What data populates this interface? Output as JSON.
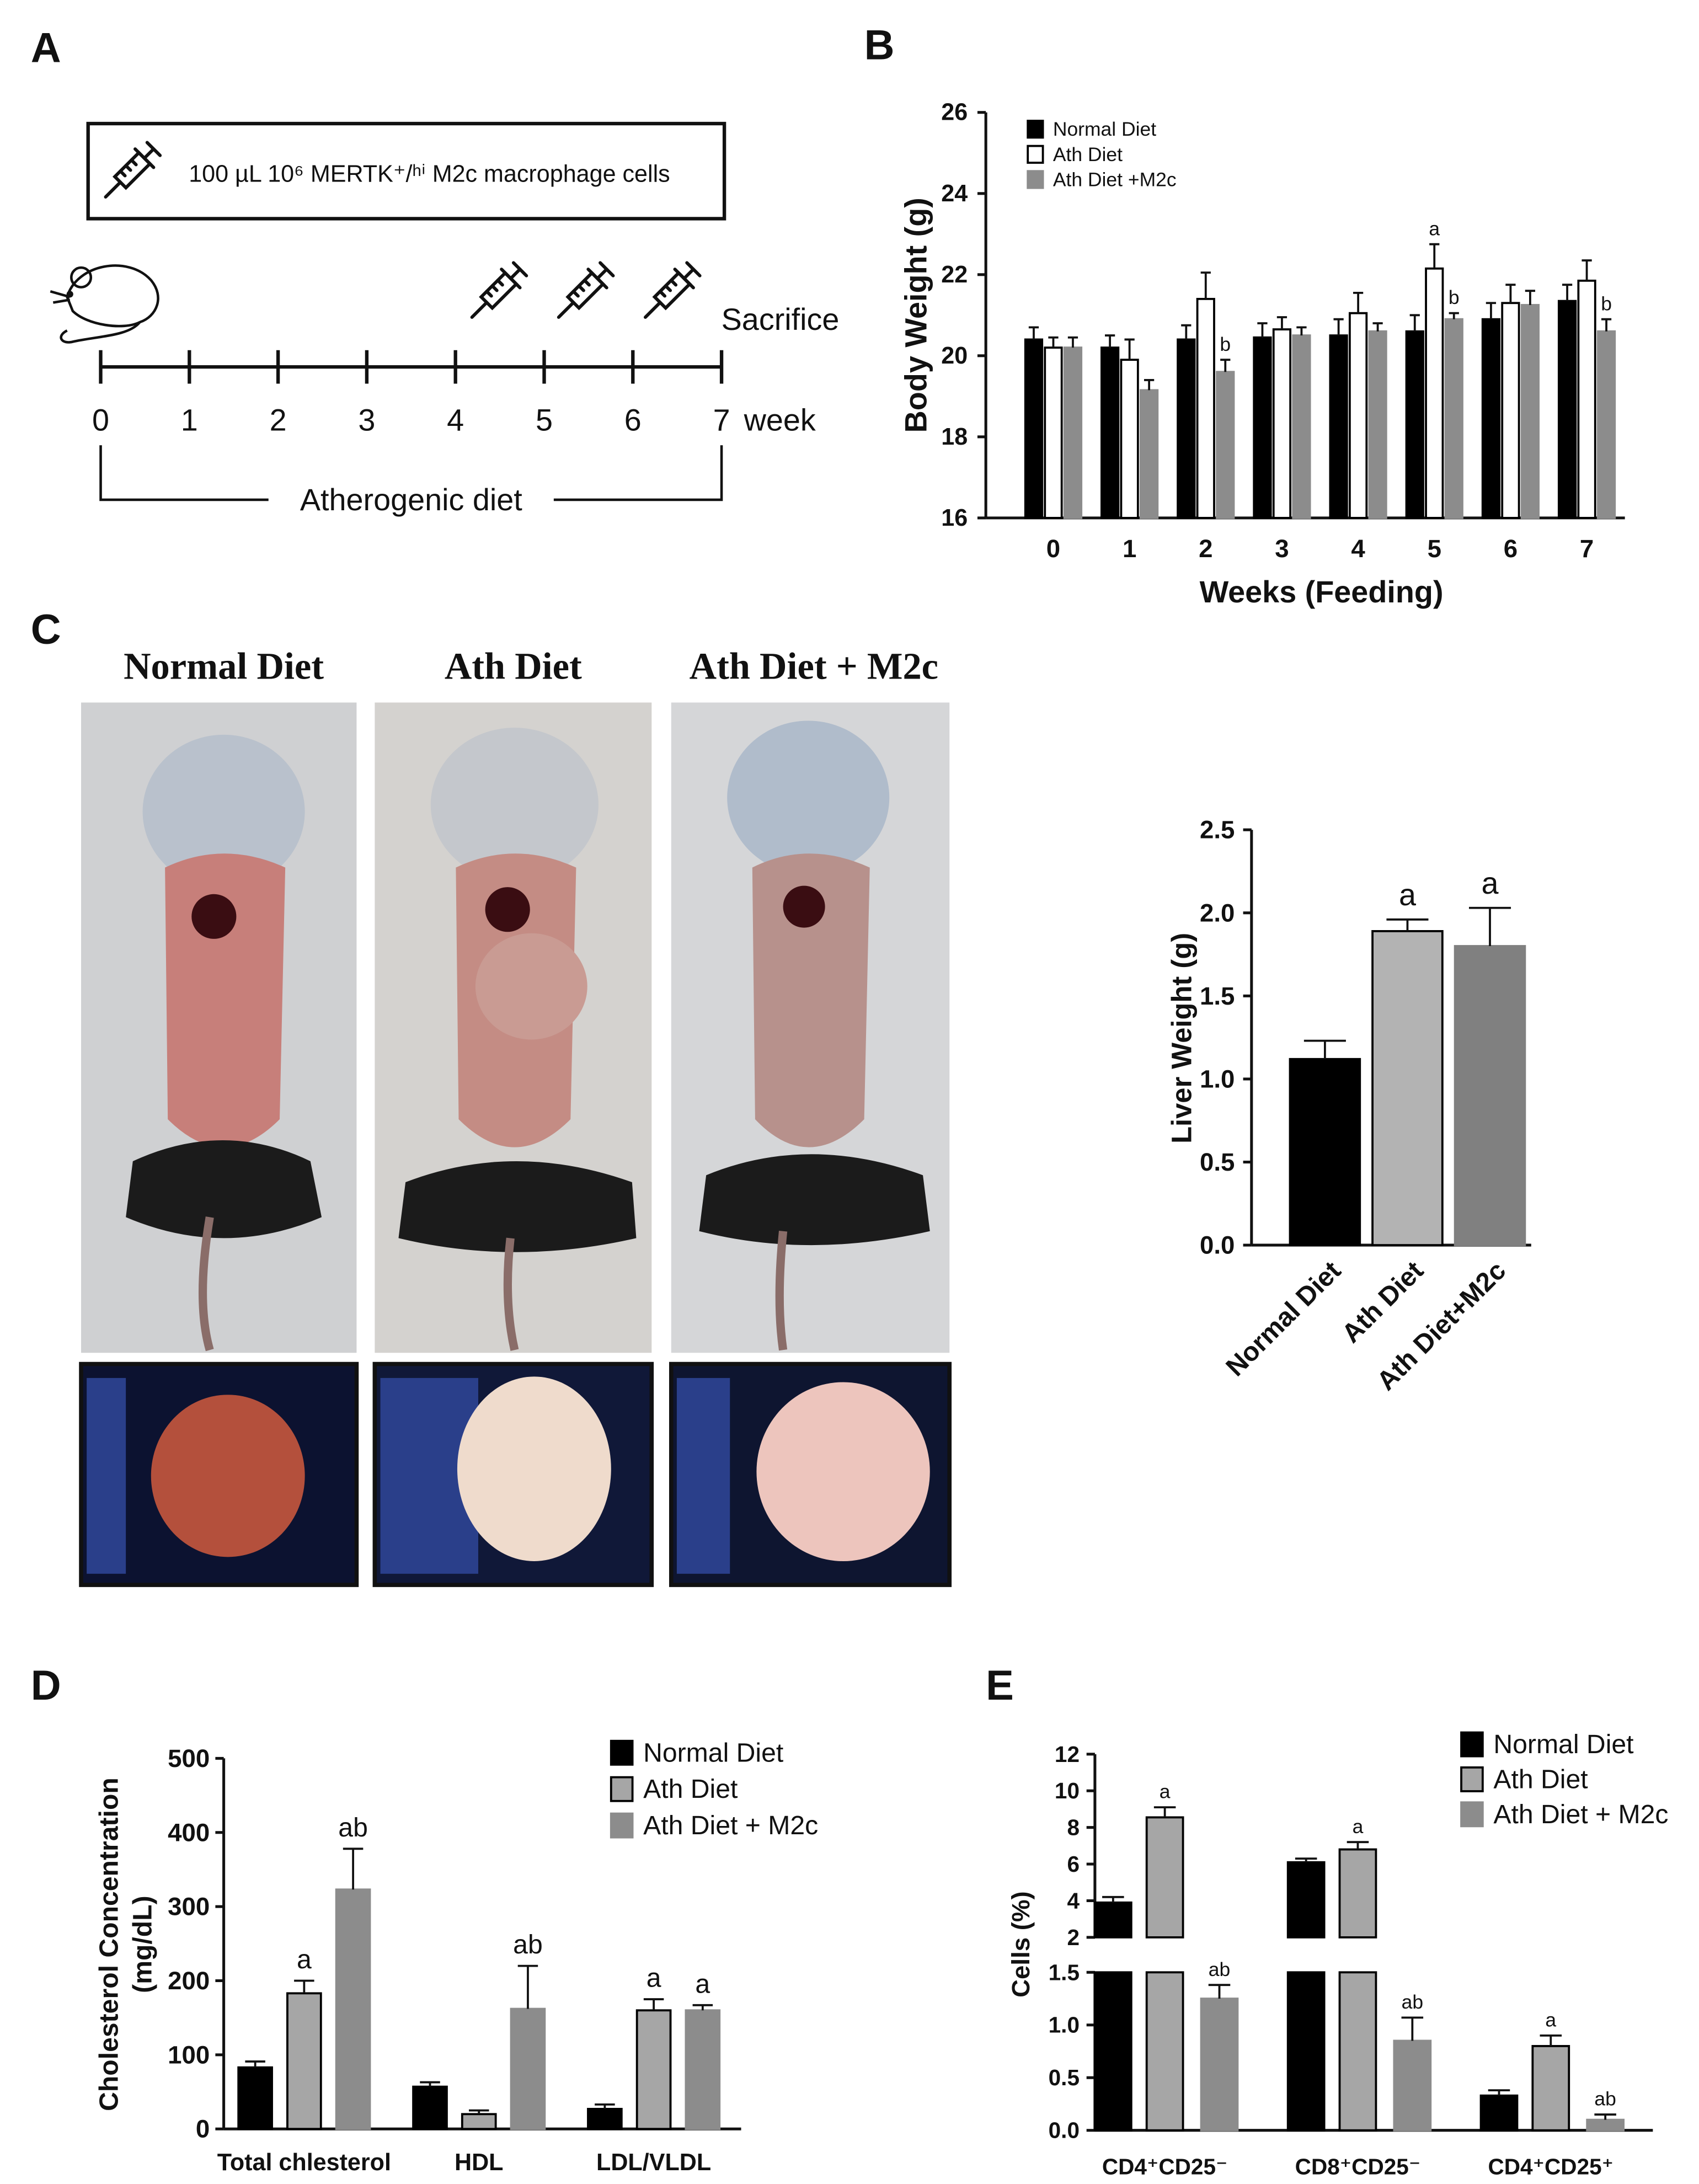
{
  "panels": {
    "labels": [
      "A",
      "B",
      "C",
      "D",
      "E"
    ]
  },
  "timeline": {
    "injection": "100 µL 10⁶ MERTK⁺/ʰⁱ M2c macrophage cells",
    "weeks": [
      0,
      1,
      2,
      3,
      4,
      5,
      6,
      7
    ],
    "unit": "week",
    "end_label": "Sacrifice",
    "diet_label": "Atherogenic diet"
  },
  "photos": {
    "titles": [
      "Normal Diet",
      "Ath Diet",
      "Ath Diet + M2c"
    ]
  },
  "chart_data": [
    {
      "type": "bar",
      "y_label": "Body Weight (g)",
      "x_label": "Weeks (Feeding)",
      "categories": [
        "0",
        "1",
        "2",
        "3",
        "4",
        "5",
        "6",
        "7"
      ],
      "ylim": [
        16,
        26
      ],
      "yticks": [
        16,
        18,
        20,
        22,
        24,
        26
      ],
      "series": [
        {
          "name": "Normal Diet",
          "color": "#000000",
          "values": [
            20.4,
            20.2,
            20.4,
            20.45,
            20.5,
            20.6,
            20.9,
            21.35
          ],
          "errors": [
            0.3,
            0.3,
            0.35,
            0.35,
            0.4,
            0.4,
            0.4,
            0.4
          ]
        },
        {
          "name": "Ath Diet",
          "color": "#ffffff",
          "edgecolor": "#000000",
          "values": [
            20.2,
            19.9,
            21.4,
            20.65,
            21.05,
            22.15,
            21.3,
            21.85
          ],
          "errors": [
            0.25,
            0.5,
            0.65,
            0.3,
            0.5,
            0.6,
            0.45,
            0.5
          ],
          "annotations": [
            null,
            null,
            null,
            null,
            null,
            "a",
            null,
            null
          ]
        },
        {
          "name": "Ath Diet +M2c",
          "color": "#8c8c8c",
          "values": [
            20.2,
            19.15,
            19.6,
            20.5,
            20.6,
            20.9,
            21.25,
            20.6
          ],
          "errors": [
            0.25,
            0.25,
            0.3,
            0.2,
            0.2,
            0.15,
            0.35,
            0.3
          ],
          "annotations": [
            null,
            null,
            "b",
            null,
            null,
            "b",
            null,
            "b"
          ]
        }
      ]
    },
    {
      "type": "bar",
      "y_label": "Liver Weight (g)",
      "categories": [
        "Normal Diet",
        "Ath Diet",
        "Ath Diet+M2c"
      ],
      "values": [
        1.12,
        1.89,
        1.8
      ],
      "errors": [
        0.11,
        0.07,
        0.23
      ],
      "annotations": [
        null,
        "a",
        "a"
      ],
      "colors": [
        "#000000",
        "#b3b3b3",
        "#808080"
      ],
      "edgecolors": [
        "#000000",
        "#000000",
        "#808080"
      ],
      "ylim": [
        0,
        2.5
      ],
      "yticks": [
        {
          "value": 0,
          "label": "0.0"
        },
        0.5,
        {
          "value": 1,
          "label": "1.0"
        },
        1.5,
        {
          "value": 2,
          "label": "2.0"
        },
        2.5
      ]
    },
    {
      "type": "bar",
      "y_label": [
        "Cholesterol Concentration",
        "(mg/dL)"
      ],
      "categories": [
        "Total chlesterol",
        "HDL",
        "LDL/VLDL"
      ],
      "ylim": [
        0,
        500
      ],
      "yticks": [
        0,
        100,
        200,
        300,
        400,
        500
      ],
      "series": [
        {
          "name": "Normal Diet",
          "color": "#000000",
          "values": [
            83,
            57,
            27
          ],
          "errors": [
            8,
            6,
            6
          ]
        },
        {
          "name": "Ath Diet",
          "color": "#a6a6a6",
          "edgecolor": "#000000",
          "values": [
            183,
            20,
            160
          ],
          "errors": [
            17,
            5,
            15
          ],
          "annotations": [
            "a",
            null,
            "a"
          ]
        },
        {
          "name": "Ath Diet + M2c",
          "color": "#8c8c8c",
          "values": [
            323,
            162,
            160
          ],
          "errors": [
            55,
            58,
            7
          ],
          "annotations": [
            "ab",
            "ab",
            "a"
          ]
        }
      ]
    },
    {
      "type": "bar",
      "y_label": "Cells (%)",
      "categories": [
        "CD4⁺CD25⁻",
        "CD8⁺CD25⁻",
        "CD4⁺CD25⁺"
      ],
      "ylim_lower": [
        0,
        1.5
      ],
      "yticks_lower": [
        {
          "value": 0,
          "label": "0.0"
        },
        0.5,
        {
          "value": 1,
          "label": "1.0"
        },
        1.5
      ],
      "ylim_upper": [
        2,
        12
      ],
      "yticks_upper": [
        2,
        4,
        6,
        8,
        10,
        12
      ],
      "series": [
        {
          "name": "Normal Diet",
          "color": "#000000",
          "values": [
            3.9,
            6.1,
            0.33
          ],
          "errors": [
            0.3,
            0.2,
            0.05
          ]
        },
        {
          "name": "Ath Diet",
          "color": "#a6a6a6",
          "edgecolor": "#000000",
          "values": [
            8.55,
            6.8,
            0.8
          ],
          "errors": [
            0.55,
            0.4,
            0.1
          ],
          "annotations": [
            "a",
            "a",
            "a"
          ]
        },
        {
          "name": "Ath Diet + M2c",
          "color": "#8c8c8c",
          "values": [
            1.25,
            0.85,
            0.1
          ],
          "errors": [
            0.13,
            0.22,
            0.05
          ],
          "annotations": [
            "ab",
            "ab",
            "ab"
          ]
        }
      ]
    }
  ]
}
